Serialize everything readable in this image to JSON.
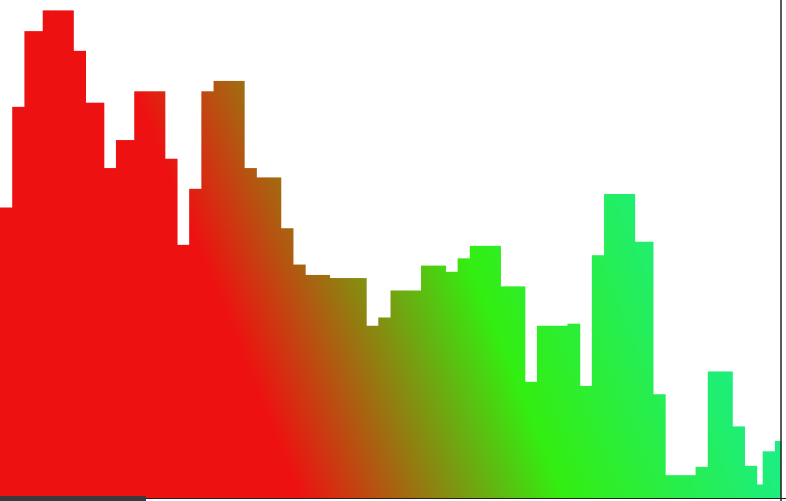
{
  "chart_data": {
    "type": "bar",
    "title": "",
    "xlabel": "",
    "ylabel": "",
    "ylim": [
      0,
      480
    ],
    "grid": false,
    "legend": "none",
    "gradient_colors": [
      "#ee1111",
      "#ee1111",
      "#33ee11",
      "#11eebb"
    ],
    "bin_count": 124,
    "values": [
      280,
      280,
      377,
      377,
      450,
      450,
      450,
      470,
      470,
      470,
      470,
      470,
      431,
      431,
      381,
      381,
      381,
      318,
      318,
      345,
      345,
      345,
      392,
      392,
      392,
      392,
      392,
      327,
      327,
      244,
      244,
      298,
      298,
      392,
      392,
      402,
      402,
      402,
      402,
      402,
      318,
      318,
      309,
      309,
      309,
      309,
      260,
      260,
      225,
      225,
      215,
      215,
      215,
      215,
      212,
      212,
      212,
      212,
      212,
      212,
      166,
      166,
      174,
      174,
      200,
      200,
      200,
      200,
      200,
      224,
      224,
      224,
      224,
      218,
      218,
      231,
      231,
      243,
      243,
      243,
      243,
      243,
      204,
      204,
      204,
      204,
      112,
      112,
      166,
      166,
      166,
      166,
      166,
      168,
      168,
      108,
      108,
      234,
      234,
      293,
      293,
      293,
      293,
      293,
      247,
      247,
      247,
      100,
      100,
      22,
      22,
      22,
      22,
      22,
      30,
      30,
      122,
      122,
      122,
      122,
      69,
      69,
      31,
      31,
      13,
      45,
      45,
      55
    ]
  }
}
